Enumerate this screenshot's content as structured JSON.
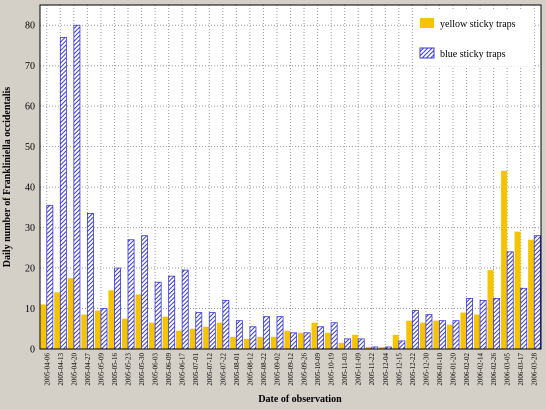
{
  "chart_data": {
    "type": "bar",
    "xlabel": "Date of observation",
    "ylabel": "Daily number of Frankliniella occidentalis",
    "categories": [
      "2005-04-06",
      "2005-04-13",
      "2005-04-20",
      "2005-04-27",
      "2005-05-09",
      "2005-05-16",
      "2005-05-23",
      "2005-05-30",
      "2005-06-03",
      "2005-06-09",
      "2005-06-17",
      "2005-07-01",
      "2005-07-12",
      "2005-07-22",
      "2005-08-01",
      "2005-08-12",
      "2005-08-22",
      "2005-09-02",
      "2005-09-12",
      "2005-09-26",
      "2005-10-09",
      "2005-10-19",
      "2005-11-03",
      "2005-11-09",
      "2005-11-22",
      "2005-12-04",
      "2005-12-15",
      "2005-12-22",
      "2005-12-30",
      "2006-01-10",
      "2006-01-20",
      "2006-02-02",
      "2006-02-14",
      "2006-02-26",
      "2006-03-05",
      "2006-03-17",
      "2006-03-28"
    ],
    "series": [
      {
        "name": "yellow sticky traps",
        "color": "#f5c400",
        "values": [
          11,
          14,
          17.5,
          8.5,
          9.5,
          14.5,
          7.5,
          13.5,
          6.5,
          8,
          4.5,
          5,
          5.5,
          6.5,
          3,
          2.5,
          3,
          3,
          4.5,
          4,
          6.5,
          4,
          1.5,
          3.5,
          0.5,
          0.5,
          3.5,
          7,
          6.5,
          7,
          6,
          9,
          8.5,
          19.5,
          44,
          29,
          27
        ]
      },
      {
        "name": "blue sticky traps",
        "color": "#3a3adb",
        "values": [
          35.5,
          77,
          80,
          33.5,
          10,
          20,
          27,
          28,
          16.5,
          18,
          19.5,
          9,
          9,
          12,
          7,
          5.5,
          8,
          8,
          4,
          4,
          5.5,
          6.5,
          2.5,
          2.5,
          0.5,
          0.5,
          2,
          9.5,
          8.5,
          7,
          7,
          12.5,
          12,
          12.5,
          24,
          15,
          28
        ]
      }
    ],
    "ylim": [
      0,
      85
    ],
    "yticks": [
      0,
      10,
      20,
      30,
      40,
      50,
      60,
      70,
      80
    ],
    "grid": true,
    "legend": "upper right"
  }
}
